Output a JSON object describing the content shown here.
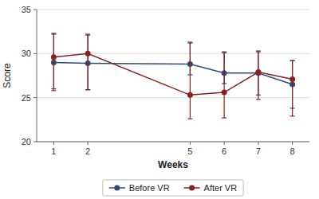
{
  "chart_data": {
    "type": "line",
    "x": [
      1,
      2,
      5,
      6,
      7,
      8
    ],
    "series": [
      {
        "name": "Before VR",
        "color": "#2c4a7c",
        "marker": "circle",
        "line_style": "solid",
        "values": [
          29.0,
          28.9,
          28.8,
          27.8,
          27.8,
          26.5
        ],
        "error_upper": [
          3.2,
          3.2,
          2.5,
          2.3,
          2.5,
          2.7
        ],
        "error_lower": [
          3.0,
          3.0,
          1.2,
          1.2,
          2.5,
          2.7
        ]
      },
      {
        "name": "After VR",
        "color": "#8b2020",
        "marker": "circle",
        "line_style": "solid",
        "values": [
          29.6,
          30.0,
          25.3,
          25.6,
          27.9,
          27.1
        ],
        "error_upper": [
          2.7,
          2.2,
          5.9,
          4.6,
          2.3,
          2.1
        ],
        "error_lower": [
          3.8,
          4.1,
          2.7,
          2.9,
          3.1,
          4.2
        ]
      }
    ],
    "xlabel": "Weeks",
    "ylabel": "Score",
    "xlim": [
      0.5,
      8.5
    ],
    "xticks": [
      1,
      2,
      5,
      6,
      7,
      8
    ],
    "ylim": [
      20,
      35
    ],
    "yticks": [
      20,
      25,
      30,
      35
    ],
    "grid": true,
    "legend": "bottom"
  }
}
